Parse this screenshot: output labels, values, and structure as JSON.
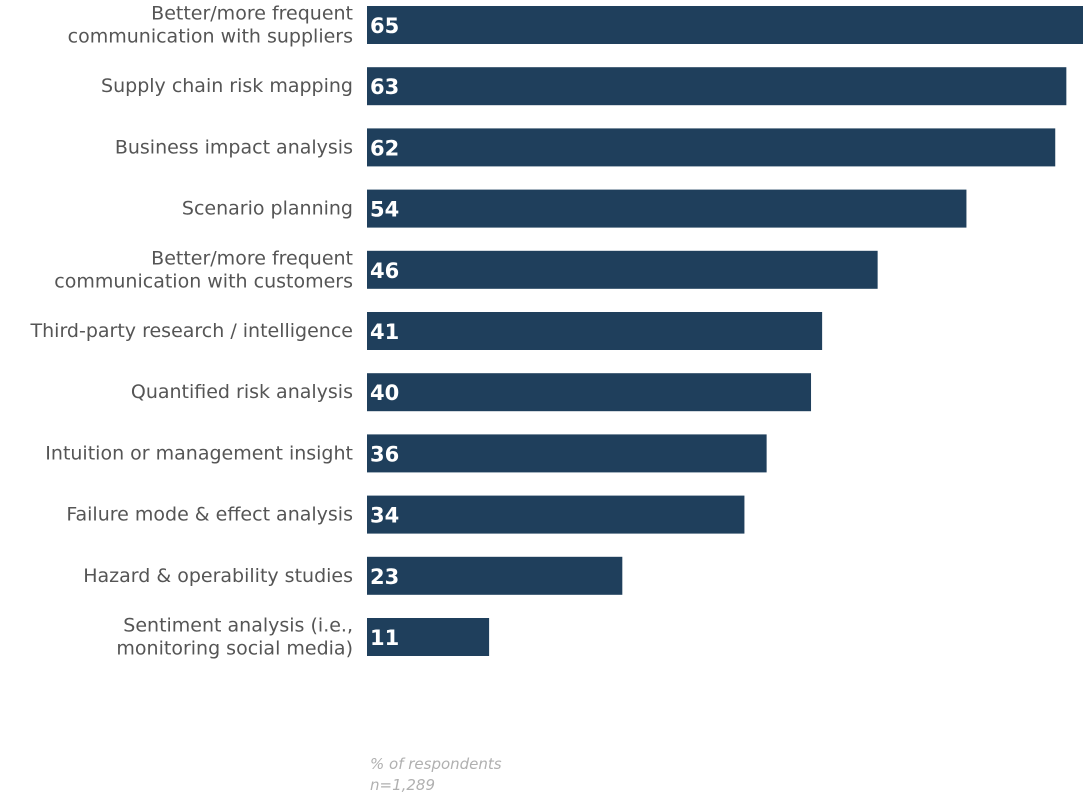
{
  "chart_data": {
    "type": "bar",
    "orientation": "horizontal",
    "categories": [
      [
        "Better/more frequent",
        "communication with suppliers"
      ],
      [
        "Supply chain risk mapping"
      ],
      [
        "Business impact analysis"
      ],
      [
        "Scenario planning"
      ],
      [
        "Better/more frequent",
        "communication with customers"
      ],
      [
        "Third-party research / intelligence"
      ],
      [
        "Quantified risk analysis"
      ],
      [
        "Intuition or management insight"
      ],
      [
        "Failure mode & effect analysis"
      ],
      [
        "Hazard & operability studies"
      ],
      [
        "Sentiment analysis (i.e.,",
        "monitoring social media)"
      ]
    ],
    "values": [
      65,
      63,
      62,
      54,
      46,
      41,
      40,
      36,
      34,
      23,
      11
    ],
    "xlim": [
      0,
      64.5
    ],
    "bar_color": "#1f3f5c",
    "data_labels": true,
    "legend": "none",
    "grid": false
  },
  "footnote": {
    "unit": "% of respondents",
    "sample": "n=1,289"
  }
}
